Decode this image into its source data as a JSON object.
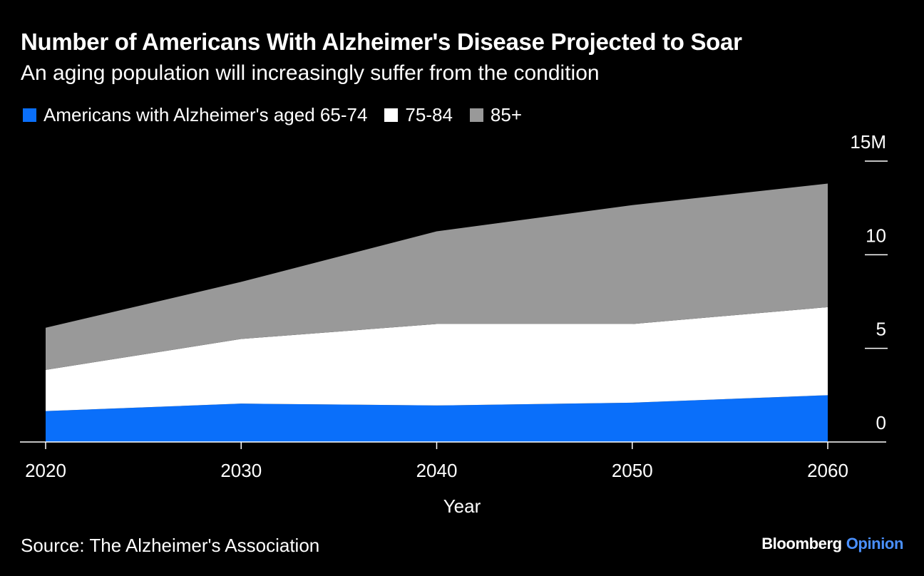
{
  "title": "Number of Americans With Alzheimer's Disease Projected to Soar",
  "subtitle": "An aging population will increasingly suffer from the condition",
  "source": "Source: The Alzheimer's Association",
  "brand": {
    "name": "Bloomberg",
    "accent": "Opinion",
    "accent_color": "#4a90ff"
  },
  "chart_data": {
    "type": "area",
    "stacked": true,
    "x": [
      2020,
      2030,
      2040,
      2050,
      2060
    ],
    "xlabel": "Year",
    "ylabel": "",
    "ylim": [
      0,
      15
    ],
    "y_ticks": [
      0,
      5,
      10,
      15
    ],
    "y_tick_labels": [
      "0",
      "5",
      "10",
      "15M"
    ],
    "x_tick_labels": [
      "2020",
      "2030",
      "2040",
      "2050",
      "2060"
    ],
    "grid": false,
    "legend_position": "top-left",
    "series": [
      {
        "name": "Americans with Alzheimer's aged 65-74",
        "color": "#0a6ffa",
        "values": [
          1.65,
          2.05,
          1.95,
          2.1,
          2.5
        ]
      },
      {
        "name": "75-84",
        "color": "#ffffff",
        "values": [
          2.2,
          3.45,
          4.35,
          4.2,
          4.7
        ]
      },
      {
        "name": "85+",
        "color": "#999999",
        "values": [
          2.25,
          3.05,
          4.95,
          6.35,
          6.6
        ]
      }
    ]
  }
}
